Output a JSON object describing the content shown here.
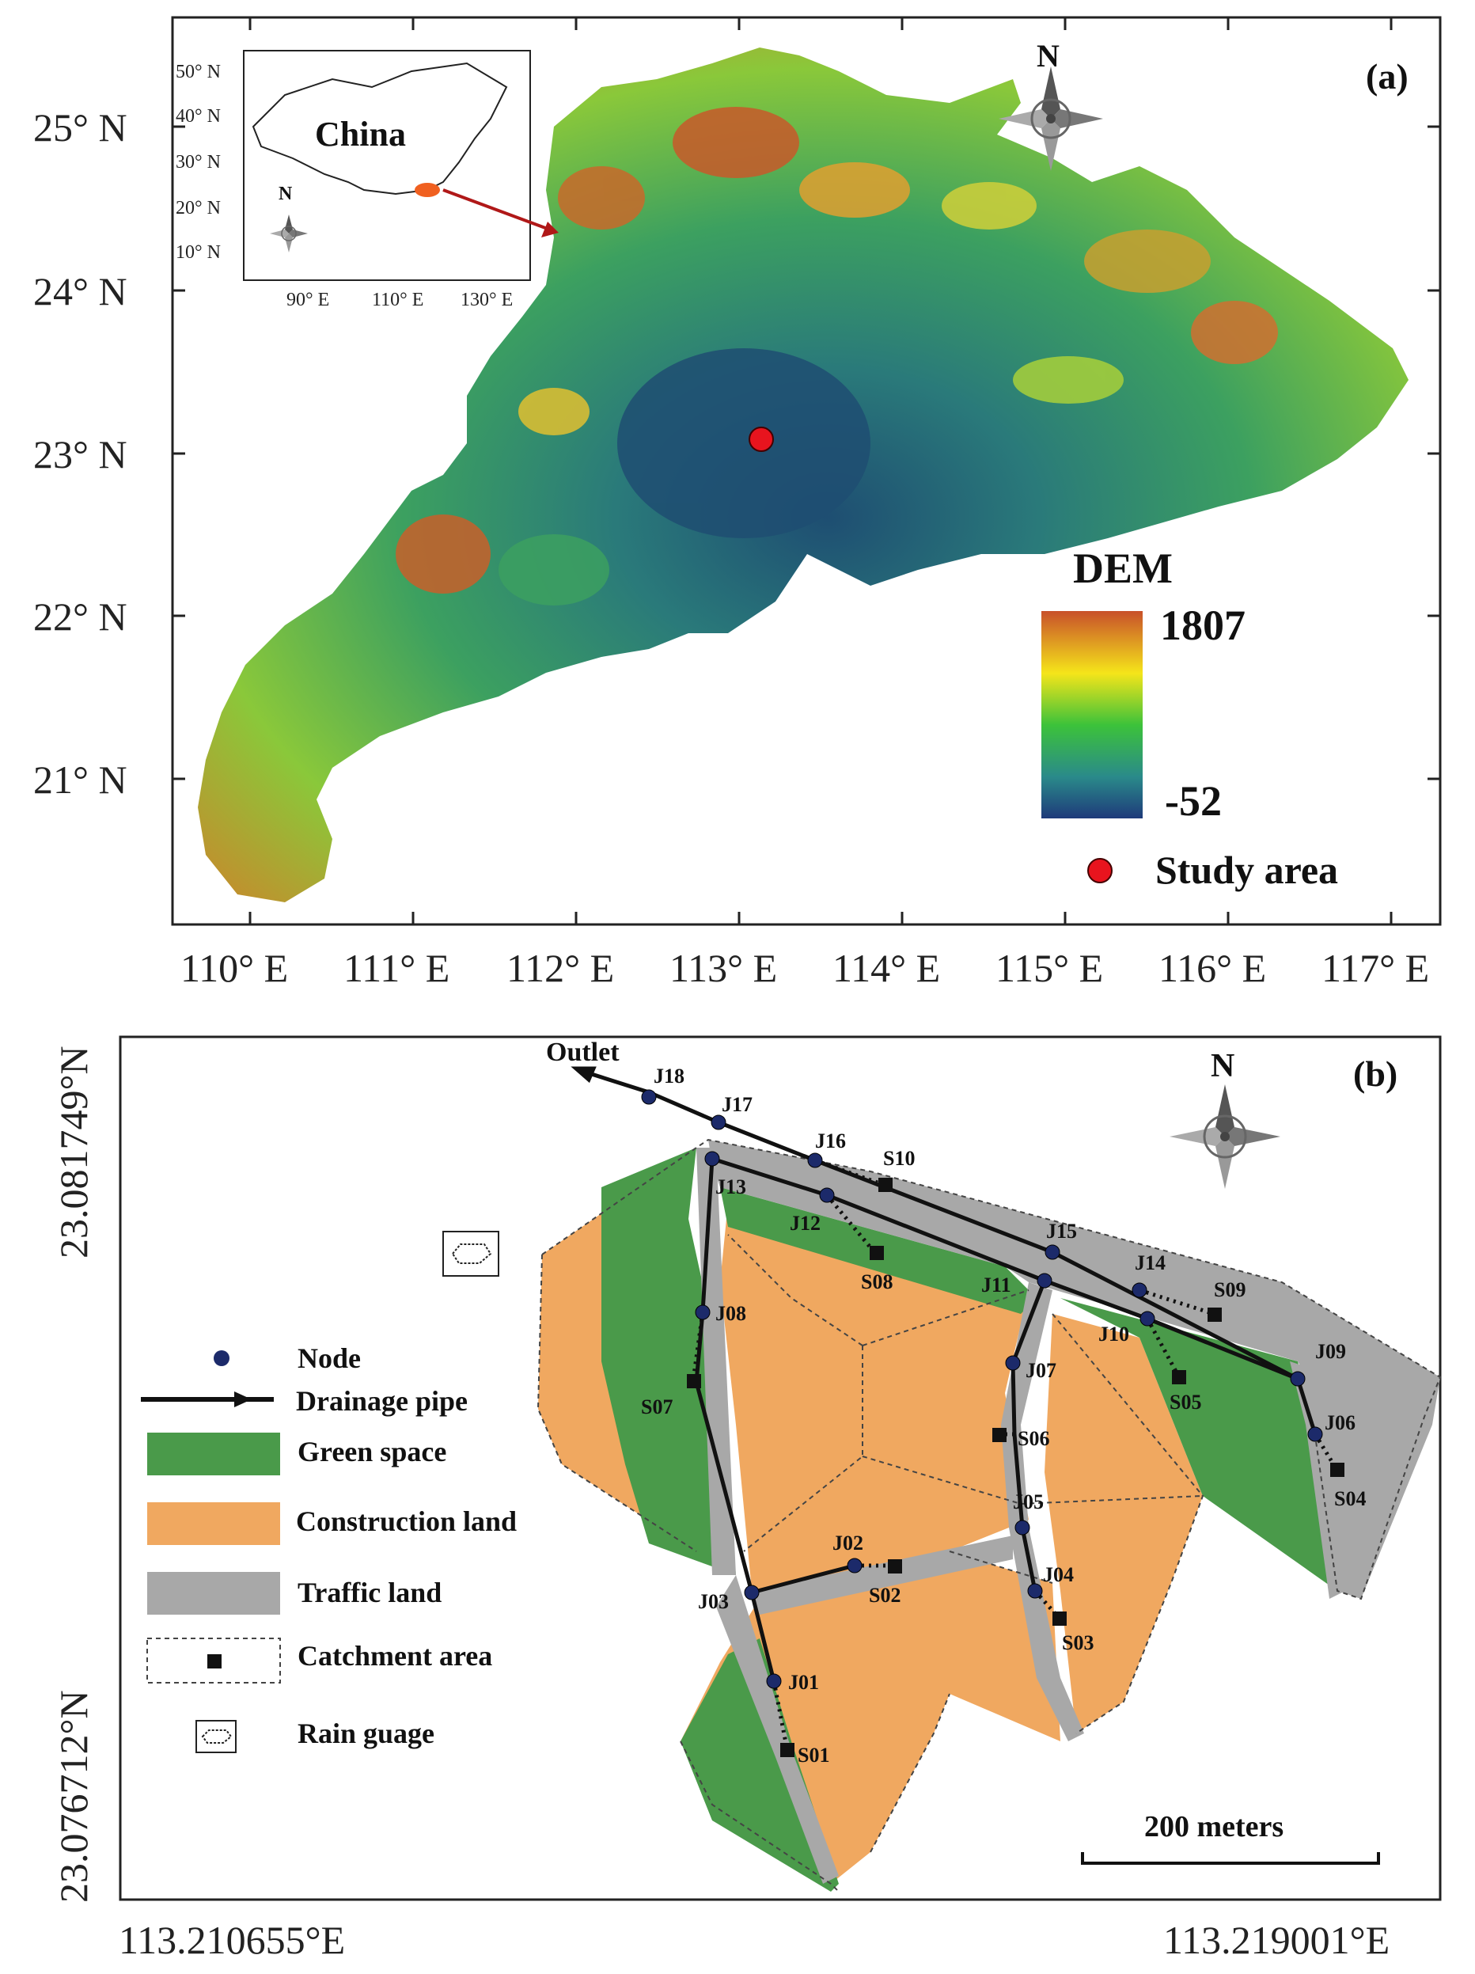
{
  "panel_a": {
    "label": "(a)",
    "north": "N",
    "lat_labels": [
      "25° N",
      "24° N",
      "23° N",
      "22° N",
      "21° N"
    ],
    "lon_labels": [
      "110° E",
      "111° E",
      "112° E",
      "113° E",
      "114° E",
      "115° E",
      "116° E",
      "117° E"
    ],
    "inset": {
      "country": "China",
      "north": "N",
      "lat_labels": [
        "50° N",
        "40° N",
        "30° N",
        "20° N",
        "10° N"
      ],
      "lon_labels": [
        "90° E",
        "110° E",
        "130° E"
      ]
    },
    "legend": {
      "title": "DEM",
      "max": "1807",
      "min": "-52",
      "study_area": "Study area"
    },
    "colors": {
      "high": "#c8502a",
      "mid_high": "#f5e51a",
      "mid": "#3cc23a",
      "mid_low": "#2a9a8a",
      "low": "#1e4e7a",
      "study_point": "#e8141e"
    }
  },
  "panel_b": {
    "label": "(b)",
    "north": "N",
    "lat_labels": [
      "23.081749°N",
      "23.076712°N"
    ],
    "lon_labels": [
      "113.210655°E",
      "113.219001°E"
    ],
    "outlet": "Outlet",
    "scale_bar": "200 meters",
    "nodes": [
      "J01",
      "J02",
      "J03",
      "J04",
      "J05",
      "J06",
      "J07",
      "J08",
      "J09",
      "J10",
      "J11",
      "J12",
      "J13",
      "J14",
      "J15",
      "J16",
      "J17",
      "J18"
    ],
    "subcatchments": [
      "S01",
      "S02",
      "S03",
      "S04",
      "S05",
      "S06",
      "S07",
      "S08",
      "S09",
      "S10"
    ],
    "legend": {
      "node": "Node",
      "pipe": "Drainage pipe",
      "green": "Green space",
      "construction": "Construction land",
      "traffic": "Traffic land",
      "catchment": "Catchment area",
      "rain": "Rain guage"
    },
    "colors": {
      "green": "#4a9a4a",
      "construction": "#f0a860",
      "traffic": "#a8a8a8",
      "node": "#1c2a6a"
    }
  }
}
